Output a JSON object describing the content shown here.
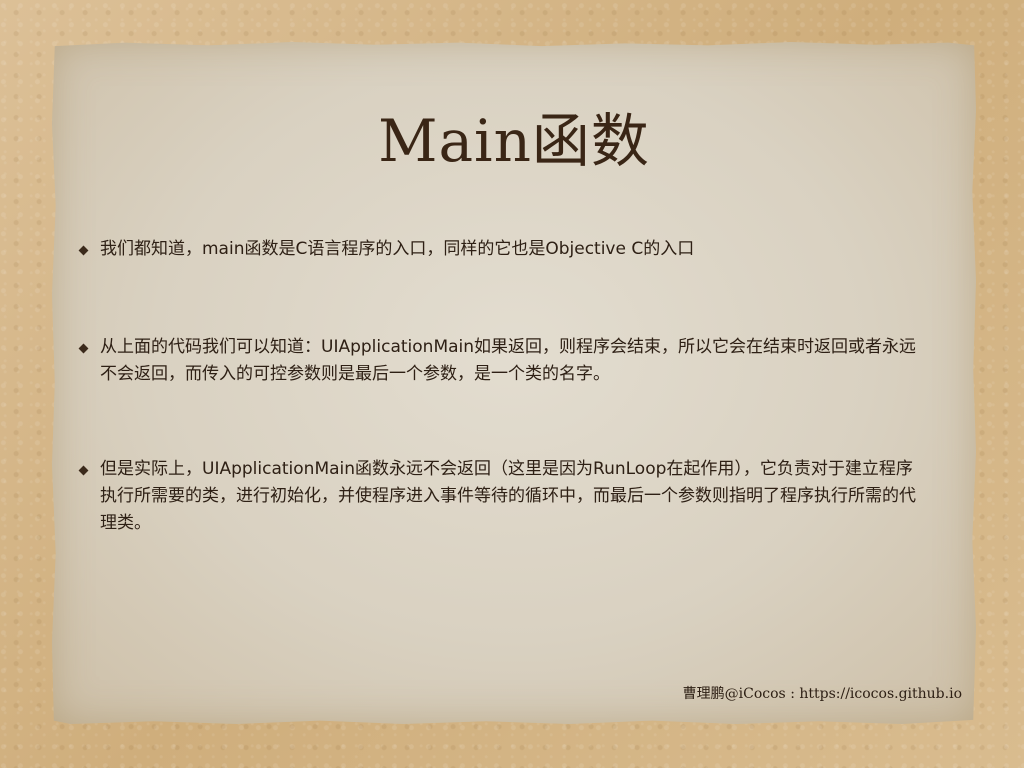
{
  "slide": {
    "title": "Main函数",
    "bullets": [
      {
        "text": "我们都知道，main函数是C语言程序的入口，同样的它也是Objective C的入口"
      },
      {
        "text": "从上面的代码我们可以知道：UIApplicationMain如果返回，则程序会结束，所以它会在结束时返回或者永远不会返回，而传入的可控参数则是最后一个参数，是一个类的名字。"
      },
      {
        "text": "但是实际上，UIApplicationMain函数永远不会返回（这里是因为RunLoop在起作用），它负责对于建立程序执行所需要的类，进行初始化，并使程序进入事件等待的循环中，而最后一个参数则指明了程序执行所需的代理类。"
      }
    ],
    "footer": "曹理鹏@iCocos : https://icocos.github.io"
  }
}
